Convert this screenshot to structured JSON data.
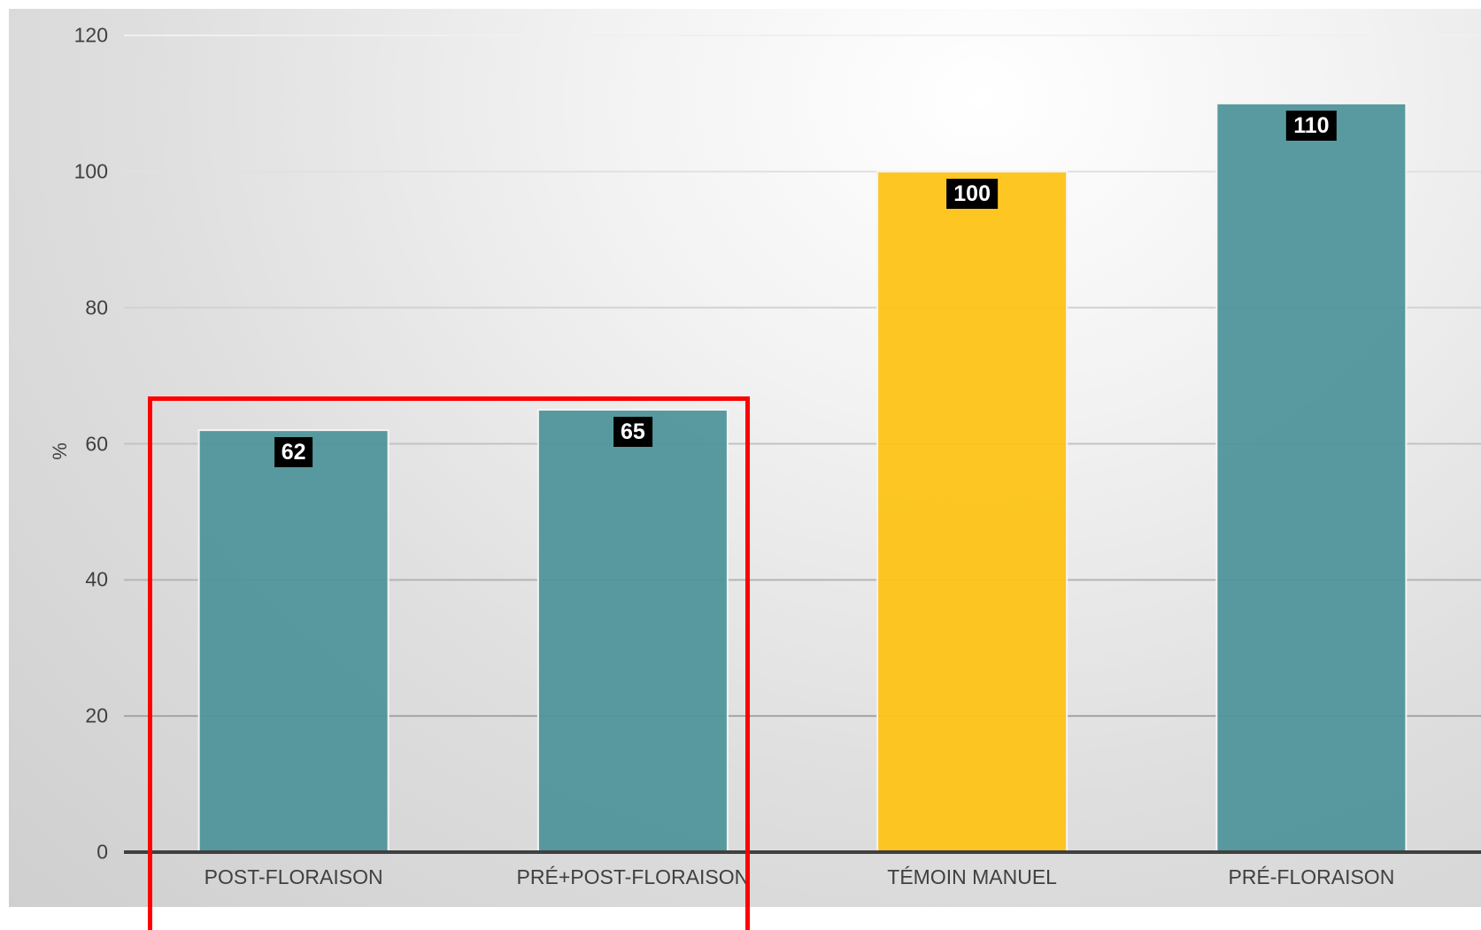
{
  "chart_data": {
    "type": "bar",
    "categories": [
      "POST-FLORAISON",
      "PRÉ+POST-FLORAISON",
      "TÉMOIN MANUEL",
      "PRÉ-FLORAISON"
    ],
    "values": [
      62,
      65,
      100,
      110
    ],
    "value_labels": [
      "62",
      "65",
      "100",
      "110"
    ],
    "bar_colors": [
      "#4f959b",
      "#4f959b",
      "#fdc316",
      "#4f959b"
    ],
    "title": "",
    "xlabel": "",
    "ylabel": "%",
    "ylim": [
      0,
      120
    ],
    "yticks": [
      0,
      20,
      40,
      60,
      80,
      100,
      120
    ],
    "ytick_labels": [
      "0",
      "20",
      "40",
      "60",
      "80",
      "100",
      "120"
    ],
    "grid": true,
    "legend": "none",
    "highlight": {
      "color": "#ff0000",
      "categories": [
        "POST-FLORAISON",
        "PRÉ+POST-FLORAISON"
      ]
    }
  }
}
